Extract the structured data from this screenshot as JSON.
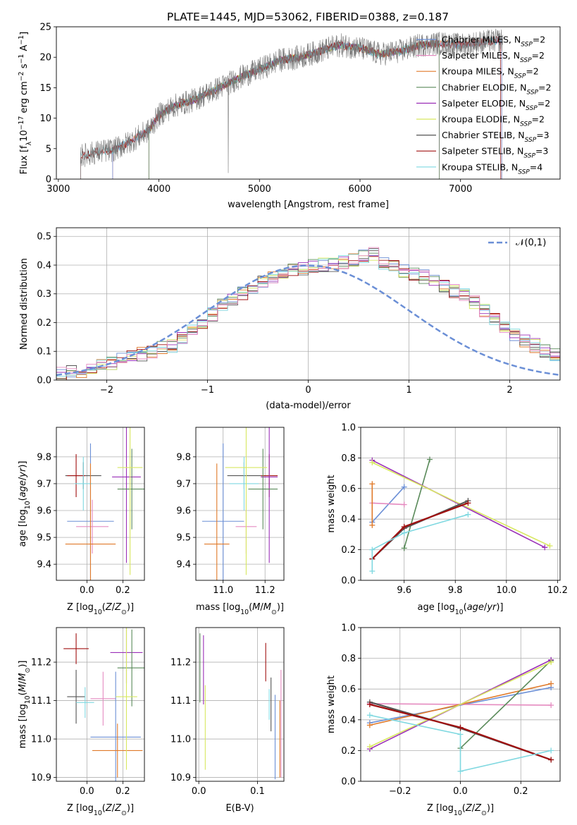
{
  "figure_title": "PLATE=1445, MJD=53062, FIBERID=0388, z=0.187",
  "colors": {
    "chabrier_miles": "#6b8fd6",
    "salpeter_miles": "#e58bc0",
    "kroupa_miles": "#e07a2a",
    "chabrier_elodie": "#5a8a5a",
    "salpeter_elodie": "#9b30b8",
    "kroupa_elodie": "#d8e860",
    "chabrier_stelib": "#555555",
    "salpeter_stelib": "#a01010",
    "kroupa_stelib": "#7fd8e0",
    "normal_curve": "#6b8fd6",
    "grid": "#b0b0b0",
    "data_spectrum": "#7a7a7a"
  },
  "chart_data": [
    {
      "id": "spectrum",
      "type": "line",
      "title": "PLATE=1445, MJD=53062, FIBERID=0388, z=0.187",
      "xlabel": "wavelength [Angstrom, rest frame]",
      "ylabel": "Flux [f_λ10^-17 erg cm^-2 s^-1 A^-1]",
      "xlim": [
        2980,
        7990
      ],
      "ylim": [
        0,
        25
      ],
      "xticks": [
        3000,
        4000,
        5000,
        6000,
        7000
      ],
      "yticks": [
        0,
        5,
        10,
        15,
        20,
        25
      ],
      "grid": false,
      "legend_position": "right",
      "legend": [
        {
          "label": "Chabrier MILES, N_SSP=2",
          "color_key": "chabrier_miles"
        },
        {
          "label": "Salpeter MILES, N_SSP=2",
          "color_key": "salpeter_miles"
        },
        {
          "label": "Kroupa MILES, N_SSP=2",
          "color_key": "kroupa_miles"
        },
        {
          "label": "Chabrier ELODIE, N_SSP=2",
          "color_key": "chabrier_elodie"
        },
        {
          "label": "Salpeter ELODIE, N_SSP=2",
          "color_key": "salpeter_elodie"
        },
        {
          "label": "Kroupa ELODIE, N_SSP=2",
          "color_key": "kroupa_elodie"
        },
        {
          "label": "Chabrier STELIB, N_SSP=3",
          "color_key": "chabrier_stelib"
        },
        {
          "label": "Salpeter STELIB, N_SSP=3",
          "color_key": "salpeter_stelib"
        },
        {
          "label": "Kroupa STELIB, N_SSP=4",
          "color_key": "kroupa_stelib"
        }
      ],
      "continuum": {
        "x": [
          3220,
          3400,
          3550,
          3700,
          3900,
          4000,
          4150,
          4350,
          4600,
          4850,
          5000,
          5200,
          5400,
          5600,
          5800,
          6000,
          6200,
          6400,
          6600,
          6800,
          7000,
          7200,
          7420
        ],
        "y": [
          3.8,
          4.5,
          4.8,
          6.0,
          8.0,
          10.5,
          12.0,
          13.0,
          15.0,
          17.0,
          18.0,
          19.5,
          20.0,
          21.0,
          22.0,
          21.5,
          20.5,
          21.0,
          22.0,
          22.3,
          22.0,
          22.5,
          22.8
        ]
      },
      "spike_x": 4690,
      "model_ranges": {
        "miles": [
          3540,
          7410
        ],
        "elodie": [
          3900,
          6790
        ],
        "stelib": [
          3220,
          7400
        ]
      }
    },
    {
      "id": "residuals",
      "type": "histogram",
      "xlabel": "(data-model)/error",
      "ylabel": "Normed distribution",
      "xlim": [
        -2.5,
        2.5
      ],
      "ylim": [
        0,
        0.53
      ],
      "xticks": [
        -2,
        -1,
        0,
        1,
        2
      ],
      "yticks": [
        0.0,
        0.1,
        0.2,
        0.3,
        0.4,
        0.5
      ],
      "grid": true,
      "legend_position": "top-right",
      "legend": [
        {
          "label": "𝒩(0,1)",
          "style": "dashed",
          "color_key": "normal_curve"
        }
      ],
      "bin_width": 0.1,
      "bin_start": -2.5,
      "base_values": [
        0.02,
        0.03,
        0.03,
        0.04,
        0.05,
        0.06,
        0.07,
        0.08,
        0.09,
        0.1,
        0.11,
        0.12,
        0.15,
        0.17,
        0.2,
        0.23,
        0.26,
        0.28,
        0.3,
        0.32,
        0.34,
        0.36,
        0.37,
        0.38,
        0.39,
        0.4,
        0.4,
        0.4,
        0.41,
        0.42,
        0.43,
        0.44,
        0.41,
        0.4,
        0.38,
        0.37,
        0.36,
        0.35,
        0.33,
        0.31,
        0.3,
        0.27,
        0.24,
        0.21,
        0.18,
        0.16,
        0.14,
        0.12,
        0.1,
        0.09,
        0.08,
        0.07,
        0.07,
        0.06,
        0.05,
        0.04,
        0.04,
        0.03,
        0.03,
        0.02,
        0.02,
        0.02,
        0.02,
        0.02,
        0.02,
        0.02,
        0.02,
        0.02,
        0.02,
        0.02
      ]
    },
    {
      "id": "age_vs_Z",
      "type": "errorbar",
      "xlabel": "Z [log10(Z/Z⊙)]",
      "ylabel": "age [log10(age/yr)]",
      "xlim": [
        -0.17,
        0.32
      ],
      "ylim": [
        9.34,
        9.91
      ],
      "xticks": [
        0.0,
        0.2
      ],
      "yticks": [
        9.4,
        9.5,
        9.6,
        9.7,
        9.8
      ],
      "grid": true,
      "points": [
        {
          "color_key": "chabrier_stelib",
          "x": -0.02,
          "xerr": 0.1,
          "y": 9.73,
          "yerr": 0.05
        },
        {
          "color_key": "salpeter_stelib",
          "x": -0.06,
          "xerr": 0.05,
          "y": 9.73,
          "yerr": 0.08
        },
        {
          "color_key": "kroupa_stelib",
          "x": -0.02,
          "xerr": 0.05,
          "y": 9.7,
          "yerr": 0.1
        },
        {
          "color_key": "chabrier_miles",
          "x": 0.02,
          "xerr": 0.13,
          "y": 9.56,
          "yerr": 0.29
        },
        {
          "color_key": "salpeter_miles",
          "x": 0.03,
          "xerr": 0.09,
          "y": 9.54,
          "yerr": 0.1
        },
        {
          "color_key": "kroupa_miles",
          "x": 0.02,
          "xerr": 0.14,
          "y": 9.475,
          "yerr": 0.3
        },
        {
          "color_key": "salpeter_elodie",
          "x": 0.22,
          "xerr": 0.08,
          "y": 9.725,
          "yerr": 0.32
        },
        {
          "color_key": "chabrier_elodie",
          "x": 0.25,
          "xerr": 0.08,
          "y": 9.68,
          "yerr": 0.15
        },
        {
          "color_key": "kroupa_elodie",
          "x": 0.24,
          "xerr": 0.07,
          "y": 9.76,
          "yerr": 0.4
        }
      ]
    },
    {
      "id": "age_vs_mass",
      "type": "errorbar",
      "xlabel": "mass [log10(M/M⊙)]",
      "ylabel": "",
      "xlim": [
        10.87,
        11.29
      ],
      "ylim": [
        9.34,
        9.91
      ],
      "xticks": [
        11.0,
        11.2
      ],
      "yticks": [
        9.4,
        9.5,
        9.6,
        9.7,
        9.8
      ],
      "grid": true,
      "points": [
        {
          "color_key": "chabrier_stelib",
          "x": 11.1,
          "xerr": 0.08,
          "y": 9.73,
          "yerr": 0.05
        },
        {
          "color_key": "salpeter_stelib",
          "x": 11.22,
          "xerr": 0.04,
          "y": 9.73,
          "yerr": 0.08
        },
        {
          "color_key": "kroupa_stelib",
          "x": 11.1,
          "xerr": 0.07,
          "y": 9.7,
          "yerr": 0.1
        },
        {
          "color_key": "chabrier_miles",
          "x": 11.0,
          "xerr": 0.1,
          "y": 9.56,
          "yerr": 0.29
        },
        {
          "color_key": "salpeter_miles",
          "x": 11.11,
          "xerr": 0.05,
          "y": 9.54,
          "yerr": 0.1
        },
        {
          "color_key": "kroupa_miles",
          "x": 10.97,
          "xerr": 0.06,
          "y": 9.475,
          "yerr": 0.3
        },
        {
          "color_key": "salpeter_elodie",
          "x": 11.22,
          "xerr": 0.04,
          "y": 9.725,
          "yerr": 0.32
        },
        {
          "color_key": "chabrier_elodie",
          "x": 11.19,
          "xerr": 0.07,
          "y": 9.68,
          "yerr": 0.15
        },
        {
          "color_key": "kroupa_elodie",
          "x": 11.11,
          "xerr": 0.1,
          "y": 9.76,
          "yerr": 0.4
        }
      ]
    },
    {
      "id": "weight_vs_age",
      "type": "line",
      "xlabel": "age [log10(age/yr)]",
      "ylabel": "mass weight",
      "xlim": [
        9.43,
        10.21
      ],
      "ylim": [
        0,
        1
      ],
      "xticks": [
        9.6,
        9.8,
        10.0,
        10.2
      ],
      "yticks": [
        0.0,
        0.2,
        0.4,
        0.6,
        0.8,
        1.0
      ],
      "grid": true,
      "series": [
        {
          "color_key": "chabrier_miles",
          "x": [
            9.475,
            9.6
          ],
          "y": [
            0.38,
            0.61
          ]
        },
        {
          "color_key": "salpeter_miles",
          "x": [
            9.475,
            9.6
          ],
          "y": [
            0.505,
            0.495
          ]
        },
        {
          "color_key": "kroupa_miles",
          "x": [
            9.475,
            9.475
          ],
          "y": [
            0.36,
            0.63
          ]
        },
        {
          "color_key": "chabrier_elodie",
          "x": [
            9.6,
            9.7
          ],
          "y": [
            0.21,
            0.79
          ]
        },
        {
          "color_key": "salpeter_elodie",
          "x": [
            9.475,
            10.15
          ],
          "y": [
            0.785,
            0.215
          ]
        },
        {
          "color_key": "kroupa_elodie",
          "x": [
            9.475,
            10.17
          ],
          "y": [
            0.77,
            0.225
          ]
        },
        {
          "color_key": "chabrier_stelib",
          "x": [
            9.475,
            9.6,
            9.85
          ],
          "y": [
            0.14,
            0.34,
            0.52
          ]
        },
        {
          "color_key": "salpeter_stelib",
          "x": [
            9.475,
            9.6,
            9.85
          ],
          "y": [
            0.14,
            0.35,
            0.505
          ]
        },
        {
          "color_key": "kroupa_stelib",
          "x": [
            9.475,
            9.475,
            9.6,
            9.85
          ],
          "y": [
            0.06,
            0.2,
            0.31,
            0.43
          ]
        }
      ]
    },
    {
      "id": "mass_vs_Z",
      "type": "errorbar",
      "xlabel": "Z [log10(Z/Z⊙)]",
      "ylabel": "mass [log10(M/M⊙)]",
      "xlim": [
        -0.17,
        0.32
      ],
      "ylim": [
        10.89,
        11.29
      ],
      "xticks": [
        0.0,
        0.2
      ],
      "yticks": [
        10.9,
        11.0,
        11.1,
        11.2
      ],
      "grid": true,
      "points": [
        {
          "color_key": "salpeter_stelib",
          "x": -0.06,
          "xerr": 0.07,
          "y": 11.235,
          "yerr": 0.04
        },
        {
          "color_key": "chabrier_stelib",
          "x": -0.06,
          "xerr": 0.05,
          "y": 11.11,
          "yerr": 0.07
        },
        {
          "color_key": "kroupa_stelib",
          "x": -0.01,
          "xerr": 0.05,
          "y": 11.095,
          "yerr": 0.04
        },
        {
          "color_key": "salpeter_miles",
          "x": 0.09,
          "xerr": 0.07,
          "y": 11.105,
          "yerr": 0.07
        },
        {
          "color_key": "chabrier_miles",
          "x": 0.16,
          "xerr": 0.14,
          "y": 11.005,
          "yerr": 0.17
        },
        {
          "color_key": "kroupa_miles",
          "x": 0.17,
          "xerr": 0.14,
          "y": 10.97,
          "yerr": 0.07
        },
        {
          "color_key": "salpeter_elodie",
          "x": 0.22,
          "xerr": 0.09,
          "y": 11.225,
          "yerr": 0.08
        },
        {
          "color_key": "chabrier_elodie",
          "x": 0.25,
          "xerr": 0.08,
          "y": 11.185,
          "yerr": 0.1
        },
        {
          "color_key": "kroupa_elodie",
          "x": 0.22,
          "xerr": 0.06,
          "y": 11.11,
          "yerr": 0.19
        }
      ]
    },
    {
      "id": "mass_vs_ebv",
      "type": "errorbar",
      "xlabel": "E(B-V)",
      "ylabel": "",
      "xlim": [
        -0.005,
        0.145
      ],
      "ylim": [
        10.89,
        11.29
      ],
      "xticks": [
        0.0,
        0.1
      ],
      "yticks": [
        10.9,
        11.0,
        11.1,
        11.2
      ],
      "grid": true,
      "points": [
        {
          "color_key": "chabrier_elodie",
          "x": 0.002,
          "xerr": 0,
          "y": 11.185,
          "yerr": 0.09
        },
        {
          "color_key": "salpeter_elodie",
          "x": 0.008,
          "xerr": 0,
          "y": 11.18,
          "yerr": 0.09
        },
        {
          "color_key": "kroupa_elodie",
          "x": 0.011,
          "xerr": 0,
          "y": 11.03,
          "yerr": 0.11
        },
        {
          "color_key": "salpeter_stelib",
          "x": 0.114,
          "xerr": 0,
          "y": 11.2,
          "yerr": 0.05
        },
        {
          "color_key": "kroupa_stelib",
          "x": 0.12,
          "xerr": 0,
          "y": 11.09,
          "yerr": 0.04
        },
        {
          "color_key": "chabrier_stelib",
          "x": 0.123,
          "xerr": 0,
          "y": 11.09,
          "yerr": 0.07
        },
        {
          "color_key": "chabrier_miles",
          "x": 0.13,
          "xerr": 0,
          "y": 11.005,
          "yerr": 0.11
        },
        {
          "color_key": "kroupa_miles",
          "x": 0.138,
          "xerr": 0,
          "y": 11.0,
          "yerr": 0.1
        },
        {
          "color_key": "salpeter_miles",
          "x": 0.14,
          "xerr": 0,
          "y": 11.04,
          "yerr": 0.14
        }
      ]
    },
    {
      "id": "weight_vs_Z",
      "type": "line",
      "xlabel": "Z [log10(Z/Z⊙)]",
      "ylabel": "mass weight",
      "xlim": [
        -0.33,
        0.33
      ],
      "ylim": [
        0,
        1
      ],
      "xticks": [
        -0.2,
        0.0,
        0.2
      ],
      "yticks": [
        0.0,
        0.2,
        0.4,
        0.6,
        0.8,
        1.0
      ],
      "grid": true,
      "series": [
        {
          "color_key": "chabrier_miles",
          "x": [
            -0.3,
            0.3
          ],
          "y": [
            0.38,
            0.61
          ]
        },
        {
          "color_key": "salpeter_miles",
          "x": [
            -0.3,
            0.3
          ],
          "y": [
            0.505,
            0.495
          ]
        },
        {
          "color_key": "kroupa_miles",
          "x": [
            -0.3,
            0.3
          ],
          "y": [
            0.365,
            0.635
          ]
        },
        {
          "color_key": "chabrier_elodie",
          "x": [
            0.0,
            0.3
          ],
          "y": [
            0.215,
            0.785
          ]
        },
        {
          "color_key": "salpeter_elodie",
          "x": [
            -0.3,
            0.3
          ],
          "y": [
            0.21,
            0.79
          ]
        },
        {
          "color_key": "kroupa_elodie",
          "x": [
            -0.3,
            0.3
          ],
          "y": [
            0.225,
            0.775
          ]
        },
        {
          "color_key": "chabrier_stelib",
          "x": [
            -0.3,
            0.0,
            0.3
          ],
          "y": [
            0.515,
            0.345,
            0.14
          ]
        },
        {
          "color_key": "salpeter_stelib",
          "x": [
            -0.3,
            0.0,
            0.3
          ],
          "y": [
            0.5,
            0.35,
            0.14
          ]
        },
        {
          "color_key": "kroupa_stelib",
          "x": [
            -0.3,
            0.0,
            0.0,
            0.3
          ],
          "y": [
            0.43,
            0.305,
            0.065,
            0.2
          ]
        }
      ]
    }
  ]
}
